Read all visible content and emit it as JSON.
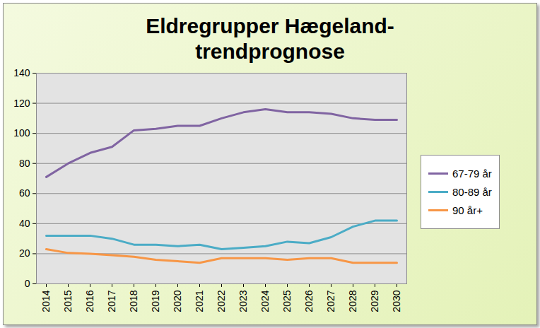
{
  "chart_data": {
    "type": "line",
    "title": "Eldregrupper Hægeland-trendprognose",
    "categories": [
      "2014",
      "2015",
      "2016",
      "2017",
      "2018",
      "2019",
      "2020",
      "2021",
      "2022",
      "2023",
      "2024",
      "2025",
      "2026",
      "2027",
      "2028",
      "2029",
      "2030"
    ],
    "series": [
      {
        "name": "67-79 år",
        "color": "#8064a2",
        "values": [
          71,
          80,
          87,
          91,
          102,
          103,
          105,
          105,
          110,
          114,
          116,
          114,
          114,
          113,
          110,
          109,
          109
        ]
      },
      {
        "name": "80-89 år",
        "color": "#4bacc6",
        "values": [
          32,
          32,
          32,
          30,
          26,
          26,
          25,
          26,
          23,
          24,
          25,
          28,
          27,
          31,
          38,
          42,
          42
        ]
      },
      {
        "name": "90 år+",
        "color": "#f79646",
        "values": [
          23,
          20.5,
          20,
          19,
          18,
          16,
          15,
          14,
          17,
          17,
          17,
          16,
          17,
          17,
          14,
          14,
          14
        ]
      }
    ],
    "ylim": [
      0,
      140
    ],
    "yticks": [
      0,
      20,
      40,
      60,
      80,
      100,
      120,
      140
    ],
    "grid": true,
    "legend": "right"
  }
}
